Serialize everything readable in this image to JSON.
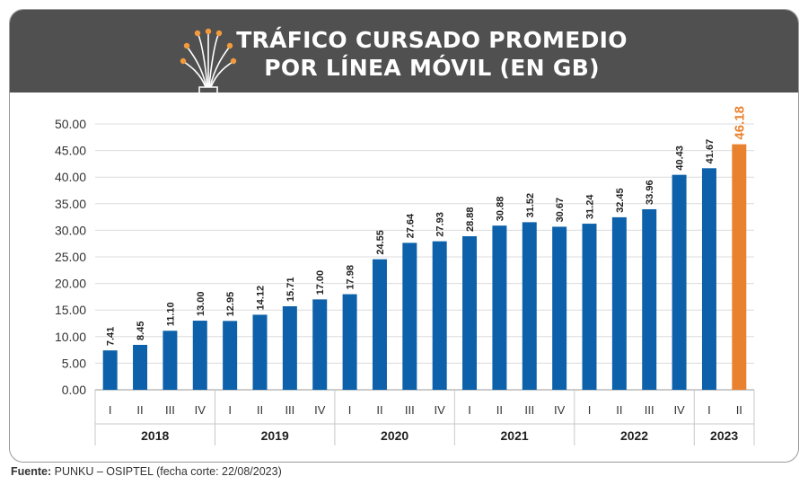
{
  "header": {
    "title_line1": "TRÁFICO CURSADO PROMEDIO",
    "title_line2": "POR LÍNEA MÓVIL (EN GB)",
    "icon": "fiber-optic-icon"
  },
  "source": {
    "label": "Fuente:",
    "text": " PUNKU – OSIPTEL (fecha corte: 22/08/2023)"
  },
  "colors": {
    "bar": "#0d61aa",
    "highlight": "#e9822e",
    "header_bg": "#505050",
    "icon_accent": "#f29a3c"
  },
  "chart_data": {
    "type": "bar",
    "title": "TRÁFICO CURSADO PROMEDIO POR LÍNEA MÓVIL (EN GB)",
    "categories": [
      "I",
      "II",
      "III",
      "IV",
      "I",
      "II",
      "III",
      "IV",
      "I",
      "II",
      "III",
      "IV",
      "I",
      "II",
      "III",
      "IV",
      "I",
      "II",
      "III",
      "IV",
      "I",
      "II"
    ],
    "values": [
      7.41,
      8.45,
      11.1,
      13.0,
      12.95,
      14.12,
      15.71,
      17.0,
      17.98,
      24.55,
      27.64,
      27.93,
      28.88,
      30.88,
      31.52,
      30.67,
      31.24,
      32.45,
      33.96,
      40.43,
      41.67,
      46.18
    ],
    "value_labels": [
      "7.41",
      "8.45",
      "11.10",
      "13.00",
      "12.95",
      "14.12",
      "15.71",
      "17.00",
      "17.98",
      "24.55",
      "27.64",
      "27.93",
      "28.88",
      "30.88",
      "31.52",
      "30.67",
      "31.24",
      "32.45",
      "33.96",
      "40.43",
      "41.67",
      "46.18"
    ],
    "highlight_index": 21,
    "groups": [
      {
        "label": "2018",
        "count": 4
      },
      {
        "label": "2019",
        "count": 4
      },
      {
        "label": "2020",
        "count": 4
      },
      {
        "label": "2021",
        "count": 4
      },
      {
        "label": "2022",
        "count": 4
      },
      {
        "label": "2023",
        "count": 2
      }
    ],
    "ylim": [
      0,
      50
    ],
    "yticks": [
      "0.00",
      "5.00",
      "10.00",
      "15.00",
      "20.00",
      "25.00",
      "30.00",
      "35.00",
      "40.00",
      "45.00",
      "50.00"
    ],
    "grid": true
  }
}
